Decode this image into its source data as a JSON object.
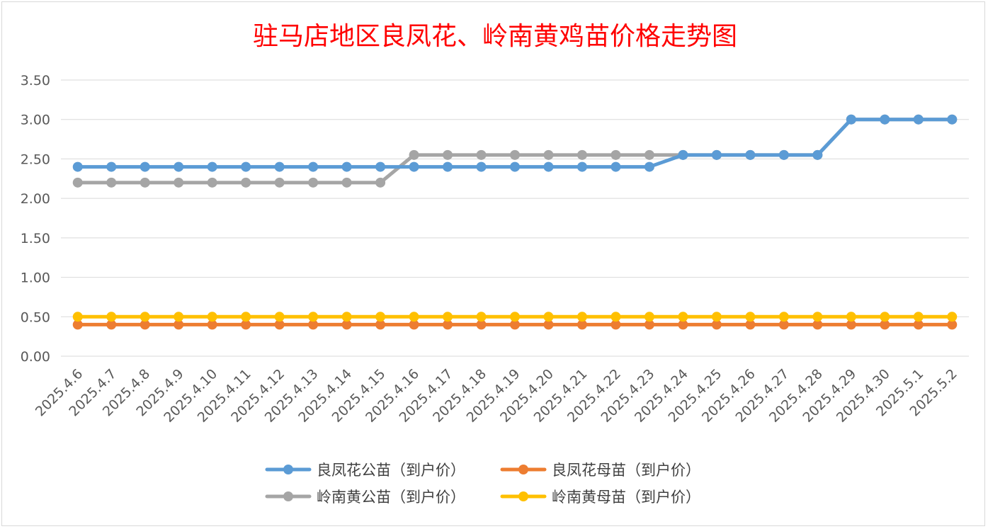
{
  "chart_data": {
    "type": "line",
    "title": "驻马店地区良凤花、岭南黄鸡苗价格走势图",
    "xlabel": "",
    "ylabel": "",
    "ylim": [
      0,
      3.5
    ],
    "yticks": [
      "0.00",
      "0.50",
      "1.00",
      "1.50",
      "2.00",
      "2.50",
      "3.00",
      "3.50"
    ],
    "grid": true,
    "legend_position": "bottom",
    "categories": [
      "2025.4.6",
      "2025.4.7",
      "2025.4.8",
      "2025.4.9",
      "2025.4.10",
      "2025.4.11",
      "2025.4.12",
      "2025.4.13",
      "2025.4.14",
      "2025.4.15",
      "2025.4.16",
      "2025.4.17",
      "2025.4.18",
      "2025.4.19",
      "2025.4.20",
      "2025.4.21",
      "2025.4.22",
      "2025.4.23",
      "2025.4.24",
      "2025.4.25",
      "2025.4.26",
      "2025.4.27",
      "2025.4.28",
      "2025.4.29",
      "2025.4.30",
      "2025.5.1",
      "2025.5.2"
    ],
    "series": [
      {
        "name": "良凤花公苗（到户价）",
        "color": "#5b9bd5",
        "values": [
          2.4,
          2.4,
          2.4,
          2.4,
          2.4,
          2.4,
          2.4,
          2.4,
          2.4,
          2.4,
          2.4,
          2.4,
          2.4,
          2.4,
          2.4,
          2.4,
          2.4,
          2.4,
          2.55,
          2.55,
          2.55,
          2.55,
          2.55,
          3.0,
          3.0,
          3.0,
          3.0
        ]
      },
      {
        "name": "良凤花母苗（到户价）",
        "color": "#ed7d31",
        "values": [
          0.4,
          0.4,
          0.4,
          0.4,
          0.4,
          0.4,
          0.4,
          0.4,
          0.4,
          0.4,
          0.4,
          0.4,
          0.4,
          0.4,
          0.4,
          0.4,
          0.4,
          0.4,
          0.4,
          0.4,
          0.4,
          0.4,
          0.4,
          0.4,
          0.4,
          0.4,
          0.4
        ]
      },
      {
        "name": "岭南黄公苗（到户价）",
        "color": "#a5a5a5",
        "values": [
          2.2,
          2.2,
          2.2,
          2.2,
          2.2,
          2.2,
          2.2,
          2.2,
          2.2,
          2.2,
          2.55,
          2.55,
          2.55,
          2.55,
          2.55,
          2.55,
          2.55,
          2.55,
          2.55,
          2.55,
          2.55,
          2.55,
          2.55,
          3.0,
          3.0,
          3.0,
          3.0
        ]
      },
      {
        "name": "岭南黄母苗（到户价）",
        "color": "#ffc000",
        "values": [
          0.5,
          0.5,
          0.5,
          0.5,
          0.5,
          0.5,
          0.5,
          0.5,
          0.5,
          0.5,
          0.5,
          0.5,
          0.5,
          0.5,
          0.5,
          0.5,
          0.5,
          0.5,
          0.5,
          0.5,
          0.5,
          0.5,
          0.5,
          0.5,
          0.5,
          0.5,
          0.5
        ]
      }
    ]
  }
}
